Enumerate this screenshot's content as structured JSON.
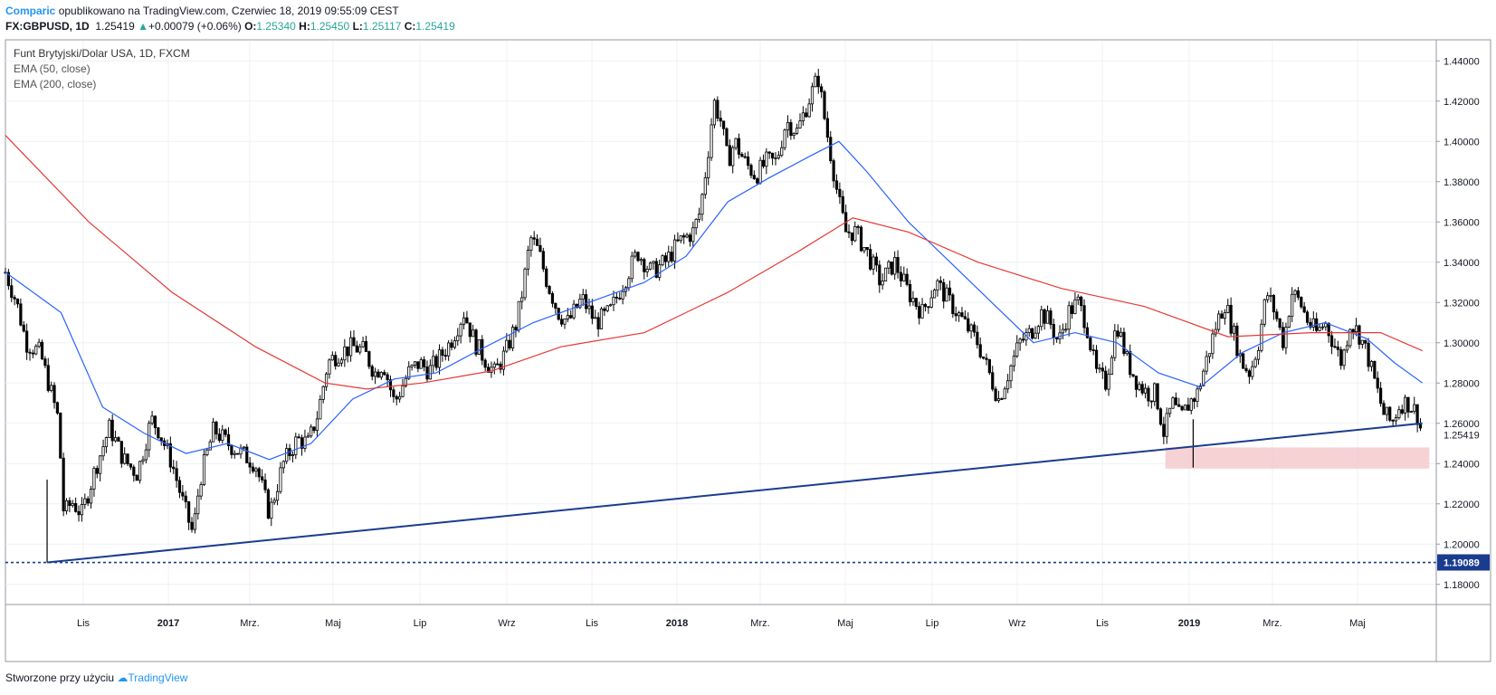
{
  "header": {
    "brand": "Comparic",
    "published": "opublikowano na TradingView.com, Czerwiec 18, 2019 09:55:09 CEST",
    "symbol": "FX:GBPUSD, 1D",
    "last": "1.25419",
    "change": "+0.00079 (+0.06%)",
    "o_label": "O:",
    "o_value": "1.25340",
    "h_label": "H:",
    "h_value": "1.25450",
    "l_label": "L:",
    "l_value": "1.25117",
    "c_label": "C:",
    "c_value": "1.25419"
  },
  "legend": {
    "title": "Funt Brytyjski/Dolar USA, 1D, FXCM",
    "ema50": "EMA (50, close)",
    "ema200": "EMA (200, close)"
  },
  "footer": {
    "made_with": "Stworzone przy użyciu",
    "tradingview": "TradingView"
  },
  "colors": {
    "candle": "#000000",
    "ema50": "#2962ff",
    "ema200": "#e53935",
    "trendline": "#1a3c8f",
    "support_zone": "#f4c7cb",
    "last_price_bg": "#ffffff",
    "support_label_bg": "#1a3c8f"
  },
  "chart_data": {
    "type": "candlestick",
    "title": "Funt Brytyjski/Dolar USA, 1D, FXCM",
    "ylim": [
      1.17,
      1.45
    ],
    "y_ticks": [
      "1.18000",
      "1.20000",
      "1.22000",
      "1.24000",
      "1.26000",
      "1.28000",
      "1.30000",
      "1.32000",
      "1.34000",
      "1.36000",
      "1.38000",
      "1.40000",
      "1.42000",
      "1.44000"
    ],
    "x_ticks": [
      "Lis",
      "2017",
      "Mrz.",
      "Maj",
      "Lip",
      "Wrz",
      "Lis",
      "2018",
      "Mrz.",
      "Maj",
      "Lip",
      "Wrz",
      "Lis",
      "2019",
      "Mrz.",
      "Maj"
    ],
    "close_path": [
      {
        "t": 0,
        "v": 1.335
      },
      {
        "t": 8,
        "v": 1.32
      },
      {
        "t": 15,
        "v": 1.3
      },
      {
        "t": 25,
        "v": 1.295
      },
      {
        "t": 33,
        "v": 1.275
      },
      {
        "t": 38,
        "v": 1.262
      },
      {
        "t": 42,
        "v": 1.215
      },
      {
        "t": 48,
        "v": 1.221
      },
      {
        "t": 55,
        "v": 1.215
      },
      {
        "t": 65,
        "v": 1.238
      },
      {
        "t": 75,
        "v": 1.258
      },
      {
        "t": 85,
        "v": 1.242
      },
      {
        "t": 95,
        "v": 1.235
      },
      {
        "t": 105,
        "v": 1.262
      },
      {
        "t": 110,
        "v": 1.257
      },
      {
        "t": 120,
        "v": 1.24
      },
      {
        "t": 128,
        "v": 1.22
      },
      {
        "t": 135,
        "v": 1.205
      },
      {
        "t": 140,
        "v": 1.232
      },
      {
        "t": 150,
        "v": 1.257
      },
      {
        "t": 160,
        "v": 1.25
      },
      {
        "t": 170,
        "v": 1.245
      },
      {
        "t": 180,
        "v": 1.24
      },
      {
        "t": 190,
        "v": 1.215
      },
      {
        "t": 200,
        "v": 1.24
      },
      {
        "t": 210,
        "v": 1.252
      },
      {
        "t": 218,
        "v": 1.25
      },
      {
        "t": 225,
        "v": 1.265
      },
      {
        "t": 232,
        "v": 1.29
      },
      {
        "t": 240,
        "v": 1.295
      },
      {
        "t": 250,
        "v": 1.298
      },
      {
        "t": 258,
        "v": 1.296
      },
      {
        "t": 266,
        "v": 1.285
      },
      {
        "t": 272,
        "v": 1.29
      },
      {
        "t": 280,
        "v": 1.27
      },
      {
        "t": 290,
        "v": 1.285
      },
      {
        "t": 298,
        "v": 1.29
      },
      {
        "t": 305,
        "v": 1.286
      },
      {
        "t": 312,
        "v": 1.292
      },
      {
        "t": 320,
        "v": 1.3
      },
      {
        "t": 330,
        "v": 1.315
      },
      {
        "t": 338,
        "v": 1.3
      },
      {
        "t": 345,
        "v": 1.292
      },
      {
        "t": 352,
        "v": 1.285
      },
      {
        "t": 360,
        "v": 1.295
      },
      {
        "t": 368,
        "v": 1.31
      },
      {
        "t": 372,
        "v": 1.325
      },
      {
        "t": 378,
        "v": 1.352
      },
      {
        "t": 384,
        "v": 1.345
      },
      {
        "t": 390,
        "v": 1.33
      },
      {
        "t": 398,
        "v": 1.315
      },
      {
        "t": 405,
        "v": 1.31
      },
      {
        "t": 415,
        "v": 1.322
      },
      {
        "t": 425,
        "v": 1.31
      },
      {
        "t": 435,
        "v": 1.315
      },
      {
        "t": 445,
        "v": 1.33
      },
      {
        "t": 455,
        "v": 1.345
      },
      {
        "t": 465,
        "v": 1.335
      },
      {
        "t": 475,
        "v": 1.34
      },
      {
        "t": 485,
        "v": 1.35
      },
      {
        "t": 495,
        "v": 1.355
      },
      {
        "t": 500,
        "v": 1.365
      },
      {
        "t": 505,
        "v": 1.39
      },
      {
        "t": 510,
        "v": 1.42
      },
      {
        "t": 515,
        "v": 1.41
      },
      {
        "t": 520,
        "v": 1.39
      },
      {
        "t": 525,
        "v": 1.4
      },
      {
        "t": 532,
        "v": 1.39
      },
      {
        "t": 540,
        "v": 1.383
      },
      {
        "t": 548,
        "v": 1.39
      },
      {
        "t": 555,
        "v": 1.39
      },
      {
        "t": 562,
        "v": 1.41
      },
      {
        "t": 570,
        "v": 1.405
      },
      {
        "t": 578,
        "v": 1.42
      },
      {
        "t": 585,
        "v": 1.432
      },
      {
        "t": 590,
        "v": 1.41
      },
      {
        "t": 595,
        "v": 1.39
      },
      {
        "t": 600,
        "v": 1.37
      },
      {
        "t": 605,
        "v": 1.355
      },
      {
        "t": 612,
        "v": 1.355
      },
      {
        "t": 620,
        "v": 1.345
      },
      {
        "t": 630,
        "v": 1.33
      },
      {
        "t": 640,
        "v": 1.34
      },
      {
        "t": 650,
        "v": 1.325
      },
      {
        "t": 660,
        "v": 1.315
      },
      {
        "t": 670,
        "v": 1.33
      },
      {
        "t": 680,
        "v": 1.32
      },
      {
        "t": 690,
        "v": 1.31
      },
      {
        "t": 700,
        "v": 1.3
      },
      {
        "t": 708,
        "v": 1.285
      },
      {
        "t": 715,
        "v": 1.272
      },
      {
        "t": 722,
        "v": 1.285
      },
      {
        "t": 730,
        "v": 1.3
      },
      {
        "t": 738,
        "v": 1.305
      },
      {
        "t": 746,
        "v": 1.315
      },
      {
        "t": 752,
        "v": 1.31
      },
      {
        "t": 758,
        "v": 1.3
      },
      {
        "t": 765,
        "v": 1.315
      },
      {
        "t": 772,
        "v": 1.32
      },
      {
        "t": 778,
        "v": 1.31
      },
      {
        "t": 785,
        "v": 1.285
      },
      {
        "t": 792,
        "v": 1.28
      },
      {
        "t": 800,
        "v": 1.31
      },
      {
        "t": 808,
        "v": 1.29
      },
      {
        "t": 815,
        "v": 1.28
      },
      {
        "t": 822,
        "v": 1.275
      },
      {
        "t": 828,
        "v": 1.275
      },
      {
        "t": 834,
        "v": 1.255
      },
      {
        "t": 840,
        "v": 1.27
      },
      {
        "t": 846,
        "v": 1.262
      },
      {
        "t": 852,
        "v": 1.27
      },
      {
        "t": 858,
        "v": 1.275
      },
      {
        "t": 864,
        "v": 1.29
      },
      {
        "t": 872,
        "v": 1.31
      },
      {
        "t": 878,
        "v": 1.32
      },
      {
        "t": 884,
        "v": 1.305
      },
      {
        "t": 890,
        "v": 1.29
      },
      {
        "t": 896,
        "v": 1.285
      },
      {
        "t": 902,
        "v": 1.3
      },
      {
        "t": 908,
        "v": 1.325
      },
      {
        "t": 914,
        "v": 1.315
      },
      {
        "t": 920,
        "v": 1.3
      },
      {
        "t": 926,
        "v": 1.325
      },
      {
        "t": 932,
        "v": 1.32
      },
      {
        "t": 938,
        "v": 1.31
      },
      {
        "t": 944,
        "v": 1.305
      },
      {
        "t": 950,
        "v": 1.31
      },
      {
        "t": 956,
        "v": 1.3
      },
      {
        "t": 962,
        "v": 1.29
      },
      {
        "t": 968,
        "v": 1.31
      },
      {
        "t": 974,
        "v": 1.305
      },
      {
        "t": 980,
        "v": 1.295
      },
      {
        "t": 986,
        "v": 1.28
      },
      {
        "t": 992,
        "v": 1.265
      },
      {
        "t": 998,
        "v": 1.26
      },
      {
        "t": 1004,
        "v": 1.27
      },
      {
        "t": 1010,
        "v": 1.27
      },
      {
        "t": 1016,
        "v": 1.265
      },
      {
        "t": 1020,
        "v": 1.254
      }
    ],
    "series": [
      {
        "name": "EMA (50, close)",
        "points": [
          {
            "t": 0,
            "v": 1.335
          },
          {
            "t": 40,
            "v": 1.315
          },
          {
            "t": 70,
            "v": 1.268
          },
          {
            "t": 100,
            "v": 1.255
          },
          {
            "t": 130,
            "v": 1.245
          },
          {
            "t": 160,
            "v": 1.25
          },
          {
            "t": 190,
            "v": 1.242
          },
          {
            "t": 220,
            "v": 1.25
          },
          {
            "t": 250,
            "v": 1.272
          },
          {
            "t": 280,
            "v": 1.282
          },
          {
            "t": 310,
            "v": 1.285
          },
          {
            "t": 340,
            "v": 1.296
          },
          {
            "t": 380,
            "v": 1.31
          },
          {
            "t": 420,
            "v": 1.32
          },
          {
            "t": 460,
            "v": 1.33
          },
          {
            "t": 490,
            "v": 1.343
          },
          {
            "t": 520,
            "v": 1.37
          },
          {
            "t": 550,
            "v": 1.382
          },
          {
            "t": 580,
            "v": 1.393
          },
          {
            "t": 600,
            "v": 1.4
          },
          {
            "t": 620,
            "v": 1.385
          },
          {
            "t": 650,
            "v": 1.36
          },
          {
            "t": 680,
            "v": 1.34
          },
          {
            "t": 710,
            "v": 1.32
          },
          {
            "t": 740,
            "v": 1.3
          },
          {
            "t": 770,
            "v": 1.305
          },
          {
            "t": 800,
            "v": 1.3
          },
          {
            "t": 830,
            "v": 1.285
          },
          {
            "t": 860,
            "v": 1.278
          },
          {
            "t": 890,
            "v": 1.295
          },
          {
            "t": 920,
            "v": 1.305
          },
          {
            "t": 950,
            "v": 1.31
          },
          {
            "t": 980,
            "v": 1.302
          },
          {
            "t": 1000,
            "v": 1.29
          },
          {
            "t": 1020,
            "v": 1.28
          }
        ]
      },
      {
        "name": "EMA (200, close)",
        "points": [
          {
            "t": 0,
            "v": 1.403
          },
          {
            "t": 60,
            "v": 1.36
          },
          {
            "t": 120,
            "v": 1.325
          },
          {
            "t": 180,
            "v": 1.298
          },
          {
            "t": 230,
            "v": 1.28
          },
          {
            "t": 260,
            "v": 1.277
          },
          {
            "t": 300,
            "v": 1.28
          },
          {
            "t": 350,
            "v": 1.286
          },
          {
            "t": 400,
            "v": 1.298
          },
          {
            "t": 460,
            "v": 1.305
          },
          {
            "t": 520,
            "v": 1.325
          },
          {
            "t": 570,
            "v": 1.345
          },
          {
            "t": 610,
            "v": 1.362
          },
          {
            "t": 650,
            "v": 1.355
          },
          {
            "t": 700,
            "v": 1.34
          },
          {
            "t": 760,
            "v": 1.327
          },
          {
            "t": 820,
            "v": 1.318
          },
          {
            "t": 880,
            "v": 1.303
          },
          {
            "t": 940,
            "v": 1.305
          },
          {
            "t": 990,
            "v": 1.305
          },
          {
            "t": 1020,
            "v": 1.296
          }
        ]
      }
    ],
    "trendline": {
      "from": {
        "t": 30,
        "v": 1.19089
      },
      "to": {
        "t": 1020,
        "v": 1.26
      }
    },
    "support_level": {
      "value": 1.19089,
      "label": "1.19089"
    },
    "last_price": {
      "value": 1.25419,
      "label": "1.25419"
    },
    "support_zone": {
      "t_start": 835,
      "t_end": 1025,
      "v_low": 1.2375,
      "v_high": 1.248
    },
    "spike_wicks": [
      {
        "t": 30,
        "low": 1.19089,
        "high": 1.232
      },
      {
        "t": 855,
        "low": 1.238,
        "high": 1.262
      }
    ],
    "t_range": [
      0,
      1030
    ]
  }
}
